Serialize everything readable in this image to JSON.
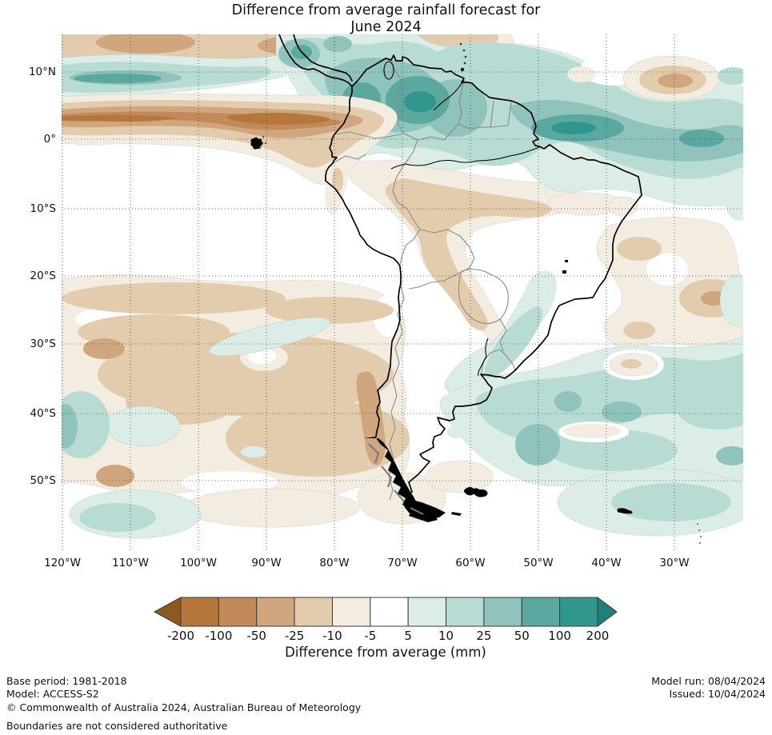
{
  "title": {
    "line1": "Difference from average rainfall forecast for",
    "line2": "June 2024"
  },
  "map": {
    "lat_labels": [
      "10°N",
      "0°",
      "10°S",
      "20°S",
      "30°S",
      "40°S",
      "50°S"
    ],
    "lon_labels": [
      "120°W",
      "110°W",
      "100°W",
      "90°W",
      "80°W",
      "70°W",
      "60°W",
      "50°W",
      "40°W",
      "30°W"
    ]
  },
  "legend": {
    "title": "Difference from average (mm)",
    "tick_labels": [
      "-200",
      "-100",
      "-50",
      "-25",
      "-10",
      "-5",
      "5",
      "10",
      "25",
      "50",
      "100",
      "200"
    ],
    "cell_order": [
      "m200e",
      "m200",
      "m100",
      "m50",
      "m25",
      "m10",
      "zero",
      "p5",
      "p10",
      "p25",
      "p50",
      "p100",
      "p200e"
    ]
  },
  "palette": {
    "m200e": "#8c5a1e",
    "m200": "#b5773b",
    "m100": "#c28a58",
    "m50": "#d0a67e",
    "m25": "#e3ccae",
    "m10": "#f2ece1",
    "zero": "#ffffff",
    "p5": "#dcece7",
    "p10": "#b8dbd3",
    "p25": "#8fc3bb",
    "p50": "#5aa8a0",
    "p100": "#31968e",
    "p200e": "#1f7f7c"
  },
  "footer": {
    "base_period": "Base period: 1981-2018",
    "model": "Model: ACCESS-S2",
    "copyright": "© Commonwealth of Australia 2024, Australian Bureau of Meteorology",
    "disclaimer": "Boundaries are not considered authoritative",
    "model_run": "Model run: 08/04/2024",
    "issued": "Issued: 10/04/2024"
  },
  "chart_data": {
    "type": "filled_contour_map",
    "region": "South America and adjacent Pacific / Atlantic oceans",
    "variable": "Rainfall forecast anomaly",
    "units": "mm",
    "contour_levels": [
      -200,
      -100,
      -50,
      -25,
      -10,
      -5,
      5,
      10,
      25,
      50,
      100,
      200
    ],
    "lat_range_deg": [
      -60,
      15.5
    ],
    "lon_range_deg": [
      -120,
      -21
    ],
    "gridline_spacing_deg": 10,
    "main_features": [
      {
        "feature": "wet band +25 to +100 mm",
        "location": "eastern tropical Pacific ITCZ near 7-10N and across Colombia, Venezuela, Guianas and tropical Atlantic"
      },
      {
        "feature": "dry band -50 to -200 mm",
        "location": "equatorial eastern Pacific 0-6N reaching Ecuador coast"
      },
      {
        "feature": "dry -5 to -25 mm",
        "location": "northern and central Brazil, Bolivia, Paraguay"
      },
      {
        "feature": "dry -5 to -25 mm",
        "location": "subtropical South Atlantic 15-35S"
      },
      {
        "feature": "dry -5 to -50 mm",
        "location": "southeast Pacific 30-55S and southern Chile coast"
      },
      {
        "feature": "wet +5 to +50 mm",
        "location": "southwest Atlantic 33-48S off Uruguay and Argentina"
      },
      {
        "feature": "wet +5 to +25 mm",
        "location": "far southeast Pacific near 45-55S"
      }
    ]
  }
}
